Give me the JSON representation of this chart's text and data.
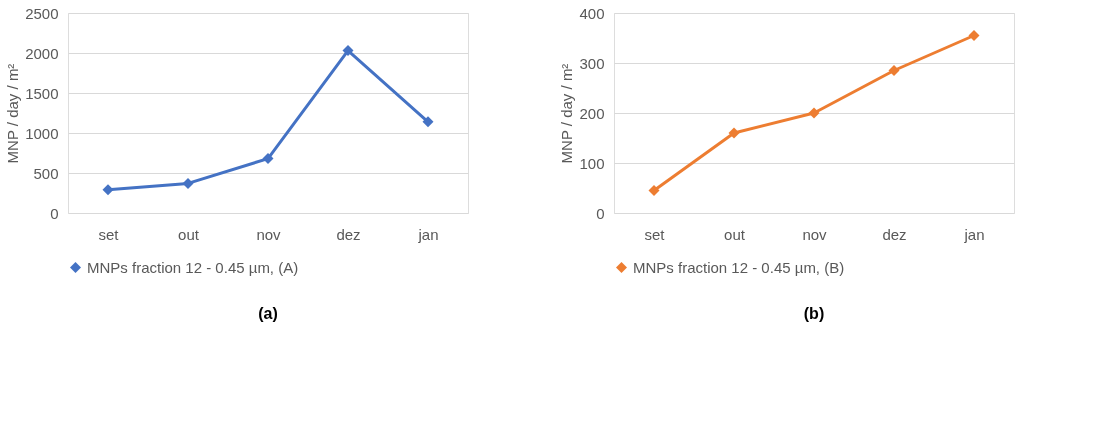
{
  "chart_data": [
    {
      "type": "line",
      "categories": [
        "set",
        "out",
        "nov",
        "dez",
        "jan"
      ],
      "ylabel": "MNP / day / m²",
      "ylim": [
        0,
        2500
      ],
      "yticks": [
        0,
        500,
        1000,
        1500,
        2000,
        2500
      ],
      "grid": "y",
      "marker": "diamond",
      "line_style": "solid",
      "legend": "bottom",
      "annotations": [
        "(a)"
      ],
      "series": [
        {
          "name": "MNPs fraction 12 - 0.45 µm, (A)",
          "color": "#4472c4",
          "values": [
            290,
            370,
            680,
            2030,
            1140
          ]
        }
      ]
    },
    {
      "type": "line",
      "categories": [
        "set",
        "out",
        "nov",
        "dez",
        "jan"
      ],
      "ylabel": "MNP / day / m²",
      "ylim": [
        0,
        400
      ],
      "yticks": [
        0,
        100,
        200,
        300,
        400
      ],
      "grid": "y",
      "marker": "diamond",
      "line_style": "solid",
      "legend": "bottom",
      "annotations": [
        "(b)"
      ],
      "series": [
        {
          "name": "MNPs fraction 12 - 0.45 µm, (B)",
          "color": "#ed7d31",
          "values": [
            45,
            160,
            200,
            285,
            355
          ]
        }
      ]
    }
  ]
}
